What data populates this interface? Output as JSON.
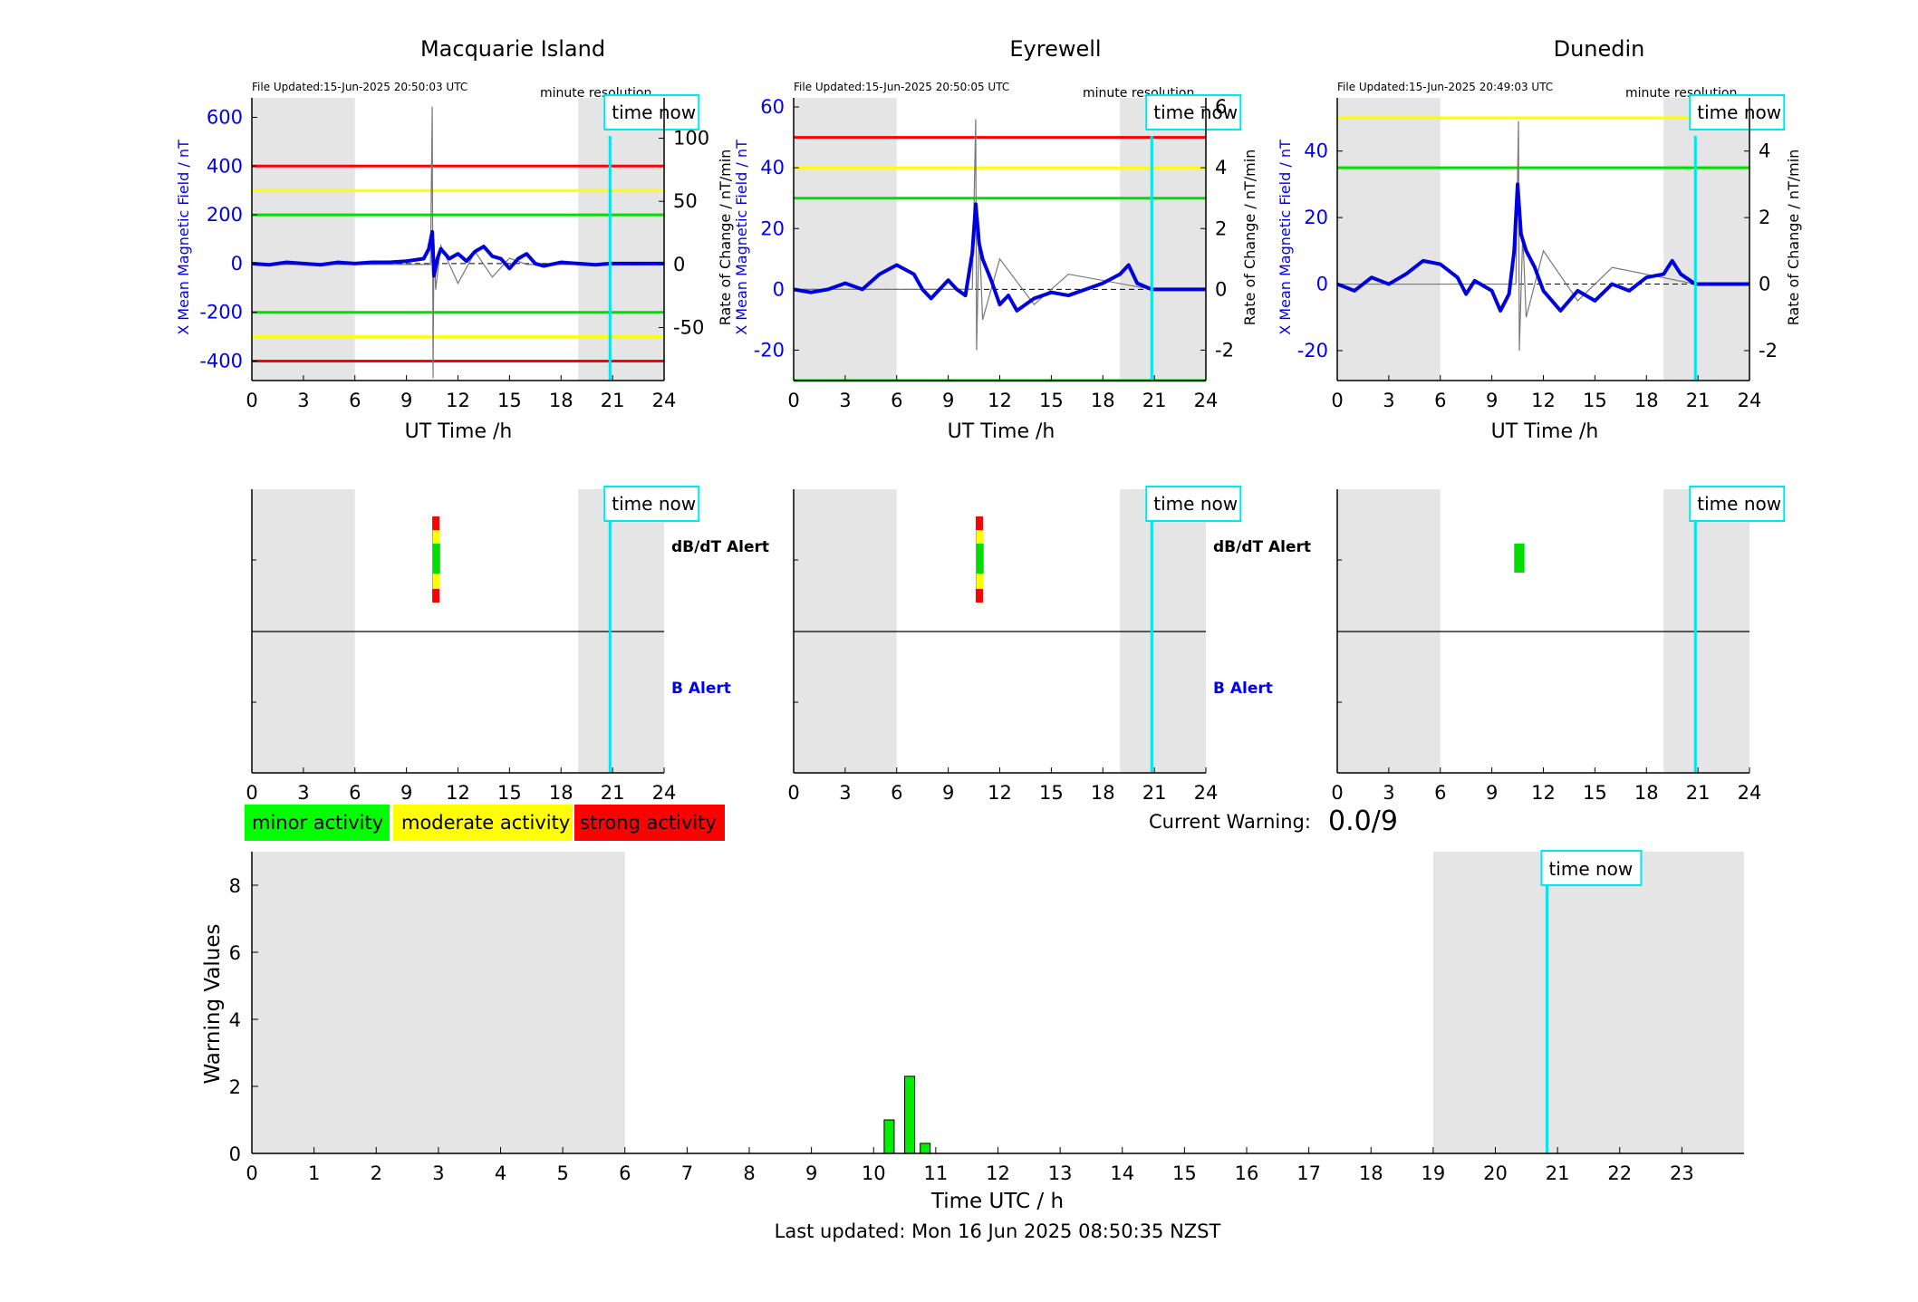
{
  "stations": [
    {
      "name": "Macquarie Island",
      "file_updated": "File Updated:15-Jun-2025 20:50:03 UTC",
      "resolution_label": "minute resolution",
      "left_ylabel": "X Mean Magnetic Field / nT",
      "right_ylabel": "",
      "left_yticks": [
        "600",
        "400",
        "200",
        "0",
        "-200",
        "-400"
      ],
      "right_yticks": [
        "100",
        "50",
        "0",
        "-50"
      ]
    },
    {
      "name": "Eyrewell",
      "file_updated": "File Updated:15-Jun-2025 20:50:05 UTC",
      "resolution_label": "minute resolution",
      "left_ylabel": "X Mean Magnetic Field / nT",
      "right_ylabel": "Rate of Change / nT/min",
      "left_yticks": [
        "60",
        "40",
        "20",
        "0",
        "-20"
      ],
      "right_yticks": [
        "6",
        "4",
        "2",
        "0",
        "-2"
      ]
    },
    {
      "name": "Dunedin",
      "file_updated": "File Updated:15-Jun-2025 20:49:03 UTC",
      "resolution_label": "minute resolution",
      "left_ylabel": "X Mean Magnetic Field / nT",
      "right_ylabel": "Rate of Change / nT/min",
      "left_yticks": [
        "40",
        "20",
        "0",
        "-20"
      ],
      "right_yticks": [
        "4",
        "2",
        "0",
        "-2"
      ]
    }
  ],
  "shared": {
    "xlabel_station": "UT Time /h",
    "time_now_label": "time now",
    "dbdt_alert_label": "dB/dT Alert",
    "b_alert_label": "B Alert",
    "xticks_3h": [
      "0",
      "3",
      "6",
      "9",
      "12",
      "15",
      "18",
      "21",
      "24"
    ]
  },
  "legend": [
    {
      "label": "minor activity",
      "color": "#00ff00"
    },
    {
      "label": "moderate activity",
      "color": "#ffff00"
    },
    {
      "label": "strong activity",
      "color": "#ff0000"
    }
  ],
  "current_warning": {
    "label": "Current Warning:",
    "value": "0.0/9"
  },
  "footer": {
    "last_updated": "Last updated: Mon 16 Jun 2025 08:50:35 NZST"
  },
  "colors": {
    "mean_field": "#0000dd",
    "rate_of_change": "#777777",
    "time_now_line": "#00e5ee",
    "shade": "#e5e5e5",
    "threshold_green": "#00dd00",
    "threshold_yellow": "#ffff00",
    "threshold_red": "#ff0000",
    "warning_bar": "#00ee00"
  },
  "chart_data": [
    {
      "type": "line",
      "title": "Macquarie Island",
      "xlabel": "UT Time /h",
      "ylabel": "X Mean Magnetic Field / nT",
      "xlim": [
        0,
        24
      ],
      "ylim": [
        -480,
        680
      ],
      "y2lim": [
        -92,
        132
      ],
      "time_now_h": 20.85,
      "shaded_hours": [
        [
          0,
          6
        ],
        [
          19,
          24
        ]
      ],
      "threshold_lines": [
        {
          "value": 400,
          "color": "red"
        },
        {
          "value": 300,
          "color": "yellow"
        },
        {
          "value": 200,
          "color": "green"
        },
        {
          "value": -200,
          "color": "green"
        },
        {
          "value": -300,
          "color": "yellow"
        },
        {
          "value": -400,
          "color": "red"
        }
      ],
      "series": [
        {
          "axis": "left",
          "x": [
            0,
            1,
            2,
            3,
            4,
            5,
            6,
            7,
            8,
            9,
            10,
            10.3,
            10.5,
            10.6,
            10.8,
            11,
            11.5,
            12,
            12.5,
            13,
            13.5,
            14,
            14.5,
            15,
            15.5,
            16,
            16.5,
            17,
            18,
            19,
            20,
            20.85,
            24
          ],
          "y": [
            0,
            -5,
            5,
            0,
            -5,
            5,
            0,
            5,
            5,
            10,
            20,
            60,
            130,
            -50,
            20,
            60,
            20,
            40,
            10,
            50,
            70,
            30,
            20,
            -20,
            20,
            40,
            0,
            -10,
            5,
            0,
            -5,
            0,
            0
          ]
        },
        {
          "axis": "right",
          "x": [
            0,
            10.4,
            10.5,
            10.55,
            10.6,
            10.7,
            11,
            12,
            13,
            14,
            15,
            16,
            20.85,
            24
          ],
          "y": [
            0,
            0,
            125,
            -90,
            20,
            -20,
            15,
            -15,
            10,
            -10,
            5,
            0,
            0,
            0
          ]
        }
      ]
    },
    {
      "type": "line",
      "title": "Eyrewell",
      "xlabel": "UT Time /h",
      "ylabel": "X Mean Magnetic Field / nT",
      "y2label": "Rate of Change / nT/min",
      "xlim": [
        0,
        24
      ],
      "ylim": [
        -30,
        63
      ],
      "y2lim": [
        -3,
        6.3
      ],
      "time_now_h": 20.85,
      "shaded_hours": [
        [
          0,
          6
        ],
        [
          19,
          24
        ]
      ],
      "threshold_lines": [
        {
          "value": 50,
          "color": "red"
        },
        {
          "value": 40,
          "color": "yellow"
        },
        {
          "value": 30,
          "color": "green"
        },
        {
          "value": -30,
          "color": "green"
        }
      ],
      "series": [
        {
          "axis": "left",
          "x": [
            0,
            1,
            2,
            3,
            4,
            5,
            6,
            7,
            7.5,
            8,
            9,
            9.5,
            10,
            10.2,
            10.4,
            10.6,
            10.8,
            11,
            11.5,
            12,
            12.5,
            13,
            14,
            15,
            16,
            17,
            18,
            19,
            19.5,
            20,
            20.85,
            24
          ],
          "y": [
            0,
            -1,
            0,
            2,
            0,
            5,
            8,
            5,
            0,
            -3,
            3,
            0,
            -2,
            5,
            12,
            28,
            15,
            10,
            3,
            -5,
            -2,
            -7,
            -3,
            -1,
            -2,
            0,
            2,
            5,
            8,
            2,
            0,
            0
          ]
        },
        {
          "axis": "right",
          "x": [
            0,
            10.4,
            10.6,
            10.65,
            10.8,
            11,
            12,
            14,
            16,
            20.85,
            24
          ],
          "y": [
            0,
            0,
            5.6,
            -2,
            2,
            -1,
            1,
            -0.5,
            0.5,
            0,
            0
          ]
        }
      ]
    },
    {
      "type": "line",
      "title": "Dunedin",
      "xlabel": "UT Time /h",
      "ylabel": "X Mean Magnetic Field / nT",
      "y2label": "Rate of Change / nT/min",
      "xlim": [
        0,
        24
      ],
      "ylim": [
        -29,
        56
      ],
      "y2lim": [
        -2.9,
        5.6
      ],
      "time_now_h": 20.85,
      "shaded_hours": [
        [
          0,
          6
        ],
        [
          19,
          24
        ]
      ],
      "threshold_lines": [
        {
          "value": 50,
          "color": "yellow"
        },
        {
          "value": 35,
          "color": "green"
        }
      ],
      "series": [
        {
          "axis": "left",
          "x": [
            0,
            1,
            2,
            3,
            4,
            5,
            6,
            7,
            7.5,
            8,
            9,
            9.5,
            10,
            10.3,
            10.5,
            10.7,
            11,
            11.5,
            12,
            12.5,
            13,
            14,
            15,
            16,
            17,
            18,
            19,
            19.5,
            20,
            20.85,
            24
          ],
          "y": [
            0,
            -2,
            2,
            0,
            3,
            7,
            6,
            2,
            -3,
            1,
            -2,
            -8,
            -3,
            10,
            30,
            15,
            10,
            5,
            -2,
            -5,
            -8,
            -2,
            -5,
            0,
            -2,
            2,
            3,
            7,
            3,
            0,
            0
          ]
        },
        {
          "axis": "right",
          "x": [
            0,
            10.4,
            10.55,
            10.6,
            10.8,
            11,
            12,
            14,
            16,
            20.85,
            24
          ],
          "y": [
            0,
            0,
            4.9,
            -2,
            1.5,
            -1,
            1,
            -0.5,
            0.5,
            0,
            0
          ]
        }
      ]
    },
    {
      "type": "bar",
      "title": "",
      "xlabel": "Time UTC / h",
      "ylabel": "Warning Values",
      "xlim": [
        0,
        24
      ],
      "ylim": [
        0,
        9
      ],
      "xticks": [
        0,
        1,
        2,
        3,
        4,
        5,
        6,
        7,
        8,
        9,
        10,
        11,
        12,
        13,
        14,
        15,
        16,
        17,
        18,
        19,
        20,
        21,
        22,
        23
      ],
      "yticks": [
        0,
        2,
        4,
        6,
        8
      ],
      "time_now_h": 20.83,
      "shaded_hours": [
        [
          0,
          6
        ],
        [
          19,
          24
        ]
      ],
      "x": [
        10.25,
        10.58,
        10.83
      ],
      "values": [
        1.0,
        2.3,
        0.3
      ]
    }
  ],
  "alerts": [
    {
      "station": "Macquarie Island",
      "dbdt": [
        {
          "start_h": 10.5,
          "end_h": 10.55,
          "level": "strong"
        },
        {
          "start_h": 10.52,
          "end_h": 10.57,
          "level": "moderate"
        },
        {
          "start_h": 10.54,
          "end_h": 10.58,
          "level": "minor"
        }
      ],
      "b": []
    },
    {
      "station": "Eyrewell",
      "dbdt": [
        {
          "start_h": 10.6,
          "end_h": 10.65,
          "level": "strong"
        },
        {
          "start_h": 10.62,
          "end_h": 10.67,
          "level": "moderate"
        },
        {
          "start_h": 10.64,
          "end_h": 10.68,
          "level": "minor"
        }
      ],
      "b": []
    },
    {
      "station": "Dunedin",
      "dbdt": [
        {
          "start_h": 10.3,
          "end_h": 10.9,
          "level": "minor"
        }
      ],
      "b": []
    }
  ]
}
